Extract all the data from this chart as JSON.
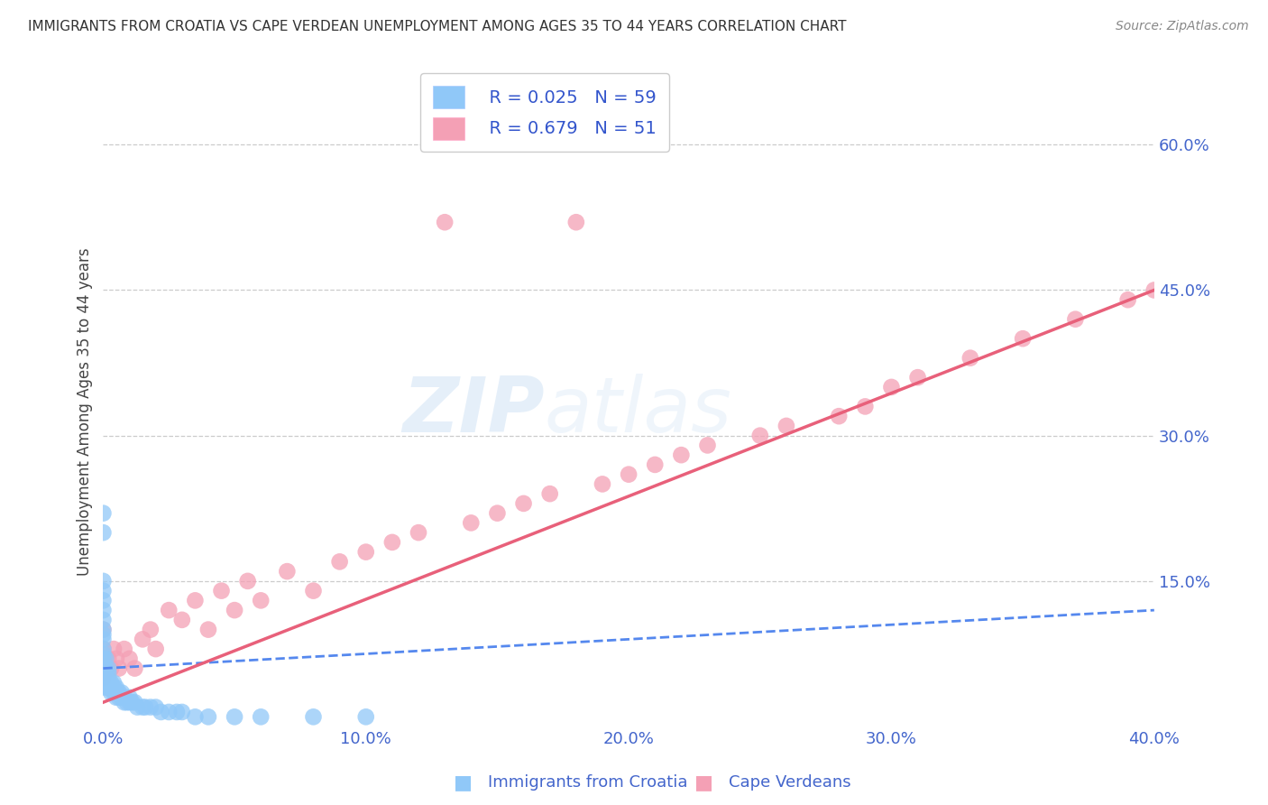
{
  "title": "IMMIGRANTS FROM CROATIA VS CAPE VERDEAN UNEMPLOYMENT AMONG AGES 35 TO 44 YEARS CORRELATION CHART",
  "source": "Source: ZipAtlas.com",
  "ylabel": "Unemployment Among Ages 35 to 44 years",
  "xlim": [
    0.0,
    0.4
  ],
  "ylim": [
    0.0,
    0.65
  ],
  "x_ticks": [
    0.0,
    0.1,
    0.2,
    0.3,
    0.4
  ],
  "x_tick_labels": [
    "0.0%",
    "10.0%",
    "20.0%",
    "30.0%",
    "40.0%"
  ],
  "y_ticks": [
    0.0,
    0.15,
    0.3,
    0.45,
    0.6
  ],
  "y_tick_labels": [
    "",
    "15.0%",
    "30.0%",
    "45.0%",
    "60.0%"
  ],
  "watermark_zip": "ZIP",
  "watermark_atlas": "atlas",
  "legend_R1": "R = 0.025",
  "legend_N1": "N = 59",
  "legend_R2": "R = 0.679",
  "legend_N2": "N = 51",
  "color_croatia": "#90C8F8",
  "color_cape_verde": "#F4A0B5",
  "color_title": "#333333",
  "color_source": "#888888",
  "color_legend_text": "#3355CC",
  "color_ticks": "#4466CC",
  "background_color": "#ffffff",
  "grid_color": "#cccccc",
  "croatia_scatter_x": [
    0.0,
    0.0,
    0.0,
    0.0,
    0.0,
    0.0,
    0.0,
    0.0,
    0.0,
    0.0,
    0.0,
    0.0,
    0.0,
    0.0,
    0.0,
    0.001,
    0.001,
    0.001,
    0.001,
    0.002,
    0.002,
    0.002,
    0.002,
    0.002,
    0.003,
    0.003,
    0.003,
    0.004,
    0.004,
    0.004,
    0.005,
    0.005,
    0.005,
    0.006,
    0.006,
    0.007,
    0.007,
    0.008,
    0.008,
    0.009,
    0.01,
    0.01,
    0.011,
    0.012,
    0.013,
    0.015,
    0.016,
    0.018,
    0.02,
    0.022,
    0.025,
    0.028,
    0.03,
    0.035,
    0.04,
    0.05,
    0.06,
    0.08,
    0.1
  ],
  "croatia_scatter_y": [
    0.05,
    0.06,
    0.07,
    0.075,
    0.08,
    0.09,
    0.095,
    0.1,
    0.11,
    0.12,
    0.13,
    0.14,
    0.15,
    0.2,
    0.22,
    0.04,
    0.05,
    0.06,
    0.07,
    0.04,
    0.045,
    0.05,
    0.055,
    0.06,
    0.035,
    0.04,
    0.045,
    0.035,
    0.04,
    0.045,
    0.03,
    0.035,
    0.04,
    0.03,
    0.035,
    0.03,
    0.035,
    0.025,
    0.03,
    0.025,
    0.025,
    0.03,
    0.025,
    0.025,
    0.02,
    0.02,
    0.02,
    0.02,
    0.02,
    0.015,
    0.015,
    0.015,
    0.015,
    0.01,
    0.01,
    0.01,
    0.01,
    0.01,
    0.01
  ],
  "cape_verde_scatter_x": [
    0.0,
    0.0,
    0.0,
    0.001,
    0.002,
    0.003,
    0.004,
    0.005,
    0.006,
    0.008,
    0.01,
    0.012,
    0.015,
    0.018,
    0.02,
    0.025,
    0.03,
    0.035,
    0.04,
    0.045,
    0.05,
    0.055,
    0.06,
    0.07,
    0.08,
    0.09,
    0.1,
    0.11,
    0.12,
    0.13,
    0.14,
    0.15,
    0.16,
    0.17,
    0.18,
    0.19,
    0.2,
    0.21,
    0.22,
    0.23,
    0.25,
    0.26,
    0.28,
    0.29,
    0.3,
    0.31,
    0.33,
    0.35,
    0.37,
    0.39,
    0.4
  ],
  "cape_verde_scatter_y": [
    0.05,
    0.08,
    0.1,
    0.06,
    0.07,
    0.06,
    0.08,
    0.07,
    0.06,
    0.08,
    0.07,
    0.06,
    0.09,
    0.1,
    0.08,
    0.12,
    0.11,
    0.13,
    0.1,
    0.14,
    0.12,
    0.15,
    0.13,
    0.16,
    0.14,
    0.17,
    0.18,
    0.19,
    0.2,
    0.52,
    0.21,
    0.22,
    0.23,
    0.24,
    0.52,
    0.25,
    0.26,
    0.27,
    0.28,
    0.29,
    0.3,
    0.31,
    0.32,
    0.33,
    0.35,
    0.36,
    0.38,
    0.4,
    0.42,
    0.44,
    0.45
  ],
  "croatia_line_x": [
    0.0,
    0.4
  ],
  "croatia_line_y": [
    0.06,
    0.12
  ],
  "cape_line_x": [
    0.0,
    0.4
  ],
  "cape_line_y": [
    0.025,
    0.45
  ],
  "legend_bottom_croatia": "Immigrants from Croatia",
  "legend_bottom_cape": "Cape Verdeans"
}
